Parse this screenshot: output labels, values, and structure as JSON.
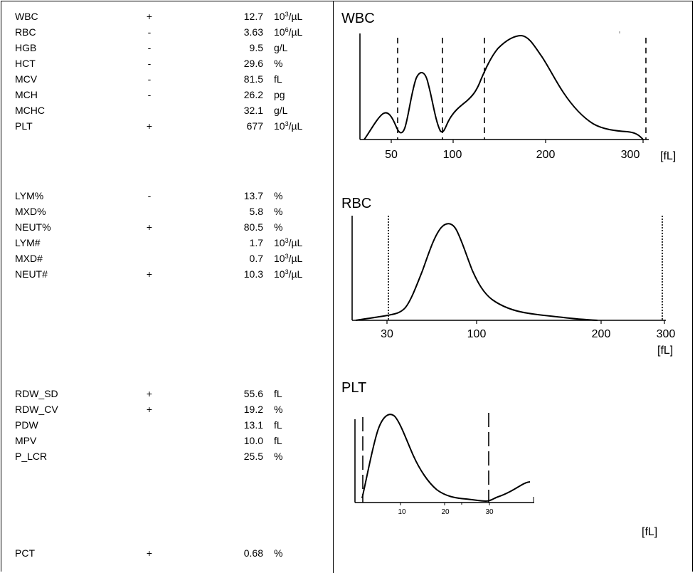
{
  "lab_groups": [
    {
      "rows": [
        {
          "name": "WBC",
          "flag": "+",
          "value": "12.7",
          "unit_base": "10",
          "unit_exp": "3",
          "unit_suffix": "/µL"
        },
        {
          "name": "RBC",
          "flag": "-",
          "value": "3.63",
          "unit_base": "10",
          "unit_exp": "6",
          "unit_suffix": "/µL"
        },
        {
          "name": "HGB",
          "flag": "-",
          "value": "9.5",
          "unit_base": "g/L",
          "unit_exp": "",
          "unit_suffix": ""
        },
        {
          "name": "HCT",
          "flag": "-",
          "value": "29.6",
          "unit_base": "%",
          "unit_exp": "",
          "unit_suffix": ""
        },
        {
          "name": "MCV",
          "flag": "-",
          "value": "81.5",
          "unit_base": "fL",
          "unit_exp": "",
          "unit_suffix": ""
        },
        {
          "name": "MCH",
          "flag": "-",
          "value": "26.2",
          "unit_base": "pg",
          "unit_exp": "",
          "unit_suffix": ""
        },
        {
          "name": "MCHC",
          "flag": "",
          "value": "32.1",
          "unit_base": "g/L",
          "unit_exp": "",
          "unit_suffix": ""
        },
        {
          "name": "PLT",
          "flag": "+",
          "value": "677",
          "unit_base": "10",
          "unit_exp": "3",
          "unit_suffix": "/µL"
        }
      ]
    },
    {
      "rows": [
        {
          "name": "LYM%",
          "flag": "-",
          "value": "13.7",
          "unit_base": "%",
          "unit_exp": "",
          "unit_suffix": ""
        },
        {
          "name": "MXD%",
          "flag": "",
          "value": "5.8",
          "unit_base": "%",
          "unit_exp": "",
          "unit_suffix": ""
        },
        {
          "name": "NEUT%",
          "flag": "+",
          "value": "80.5",
          "unit_base": "%",
          "unit_exp": "",
          "unit_suffix": ""
        },
        {
          "name": "LYM#",
          "flag": "",
          "value": "1.7",
          "unit_base": "10",
          "unit_exp": "3",
          "unit_suffix": "/µL"
        },
        {
          "name": "MXD#",
          "flag": "",
          "value": "0.7",
          "unit_base": "10",
          "unit_exp": "3",
          "unit_suffix": "/µL"
        },
        {
          "name": "NEUT#",
          "flag": "+",
          "value": "10.3",
          "unit_base": "10",
          "unit_exp": "3",
          "unit_suffix": "/µL"
        }
      ]
    },
    {
      "rows": [
        {
          "name": "RDW_SD",
          "flag": "+",
          "value": "55.6",
          "unit_base": "fL",
          "unit_exp": "",
          "unit_suffix": ""
        },
        {
          "name": "RDW_CV",
          "flag": "+",
          "value": "19.2",
          "unit_base": "%",
          "unit_exp": "",
          "unit_suffix": ""
        },
        {
          "name": "PDW",
          "flag": "",
          "value": "13.1",
          "unit_base": "fL",
          "unit_exp": "",
          "unit_suffix": ""
        },
        {
          "name": "MPV",
          "flag": "",
          "value": "10.0",
          "unit_base": "fL",
          "unit_exp": "",
          "unit_suffix": ""
        },
        {
          "name": "P_LCR",
          "flag": "",
          "value": "25.5",
          "unit_base": "%",
          "unit_exp": "",
          "unit_suffix": ""
        }
      ]
    },
    {
      "rows": [
        {
          "name": "PCT",
          "flag": "+",
          "value": "0.68",
          "unit_base": "%",
          "unit_exp": "",
          "unit_suffix": ""
        }
      ]
    }
  ],
  "histograms": {
    "wbc": {
      "title": "WBC",
      "x_ticks": [
        "50",
        "100",
        "200",
        "300"
      ],
      "unit_label": "[fL]"
    },
    "rbc": {
      "title": "RBC",
      "x_ticks": [
        "30",
        "100",
        "200",
        "300"
      ],
      "unit_label": "[fL]"
    },
    "plt": {
      "title": "PLT",
      "x_ticks": [
        "10",
        "20",
        "30"
      ],
      "unit_label": "[fL]"
    }
  }
}
